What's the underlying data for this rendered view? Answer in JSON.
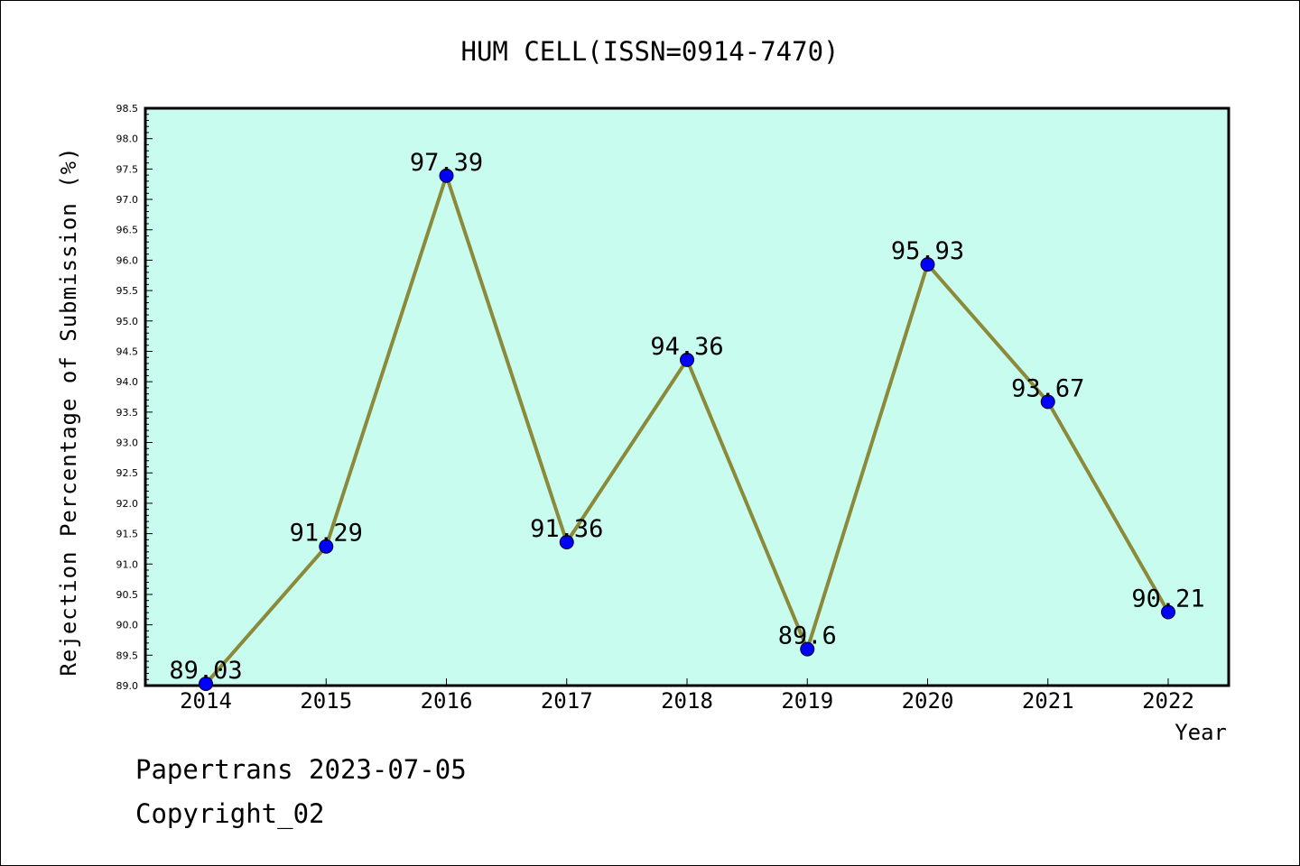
{
  "chart_data": {
    "type": "line",
    "title": "HUM CELL(ISSN=0914-7470)",
    "xlabel": "Year",
    "ylabel": "Rejection Percentage of Submission (%)",
    "categories": [
      "2014",
      "2015",
      "2016",
      "2017",
      "2018",
      "2019",
      "2020",
      "2021",
      "2022"
    ],
    "values": [
      89.03,
      91.29,
      97.39,
      91.36,
      94.36,
      89.6,
      95.93,
      93.67,
      90.21
    ],
    "data_labels": [
      "89.03",
      "91.29",
      "97.39",
      "91.36",
      "94.36",
      "89.6",
      "95.93",
      "93.67",
      "90.21"
    ],
    "ylim": [
      89.0,
      98.5
    ],
    "y_ticks": [
      "89.0",
      "89.5",
      "90.0",
      "90.5",
      "91.0",
      "91.5",
      "92.0",
      "92.5",
      "93.0",
      "93.5",
      "94.0",
      "94.5",
      "95.0",
      "95.5",
      "96.0",
      "96.5",
      "97.0",
      "97.5",
      "98.0",
      "98.5"
    ],
    "grid": false,
    "colors": {
      "plot_bg": "#c8fcee",
      "line": "#8b8a3a",
      "marker": "#0000ff"
    }
  },
  "footer": {
    "line1": "Papertrans 2023-07-05",
    "line2": "Copyright_02"
  }
}
